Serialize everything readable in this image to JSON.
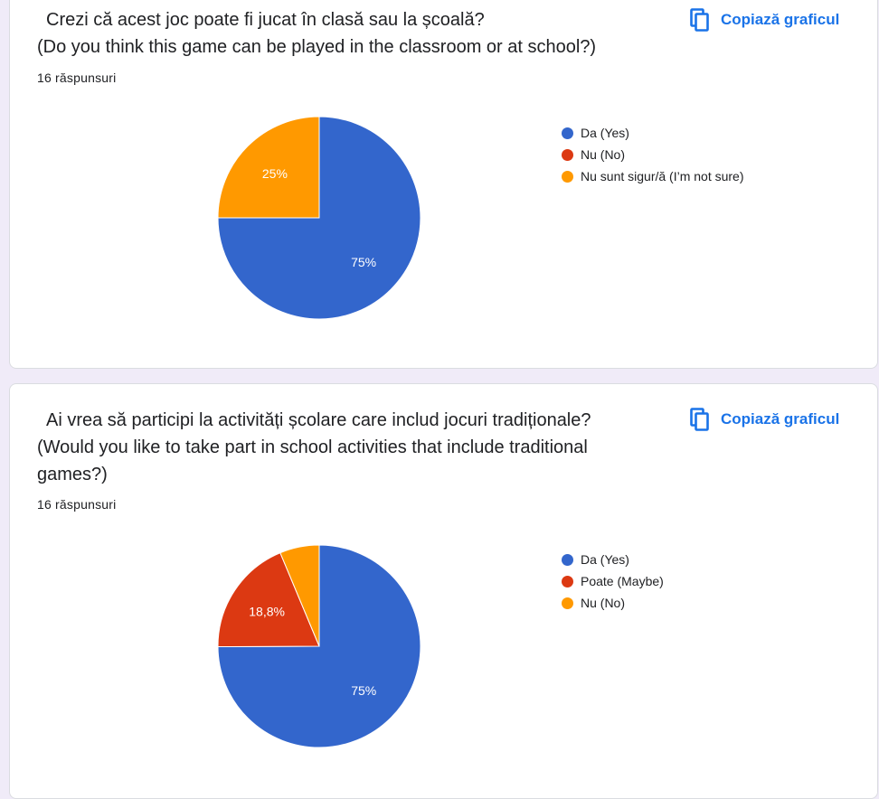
{
  "colors": {
    "accent": "#1a73e8",
    "blue": "#3366cc",
    "red": "#dc3912",
    "orange": "#ff9900"
  },
  "cards": [
    {
      "question_line1": "Crezi că acest joc poate fi jucat în clasă sau la școală?",
      "question_line2": "(Do you think this game can be played in the classroom or at school?)",
      "responses": "16 răspunsuri",
      "copy_label": "Copiază graficul",
      "copy_icon": "copy-icon",
      "chart_data": {
        "type": "pie",
        "labels": [
          "Da (Yes)",
          "Nu (No)",
          "Nu sunt sigur/ă (I’m not sure)"
        ],
        "values": [
          75,
          0,
          25
        ],
        "data_labels": [
          "75%",
          "",
          "25%"
        ],
        "colors": [
          "#3366cc",
          "#dc3912",
          "#ff9900"
        ],
        "legend_position": "right"
      }
    },
    {
      "question_line1": "Ai vrea să participi la activități școlare care includ jocuri tradiționale?",
      "question_line2": "(Would you like to take part in school activities that include traditional games?)",
      "responses": "16 răspunsuri",
      "copy_label": "Copiază graficul",
      "copy_icon": "copy-icon",
      "chart_data": {
        "type": "pie",
        "labels": [
          "Da (Yes)",
          "Poate (Maybe)",
          "Nu (No)"
        ],
        "values": [
          75,
          18.8,
          6.3
        ],
        "data_labels": [
          "75%",
          "18,8%",
          ""
        ],
        "colors": [
          "#3366cc",
          "#dc3912",
          "#ff9900"
        ],
        "legend_position": "right"
      }
    }
  ]
}
